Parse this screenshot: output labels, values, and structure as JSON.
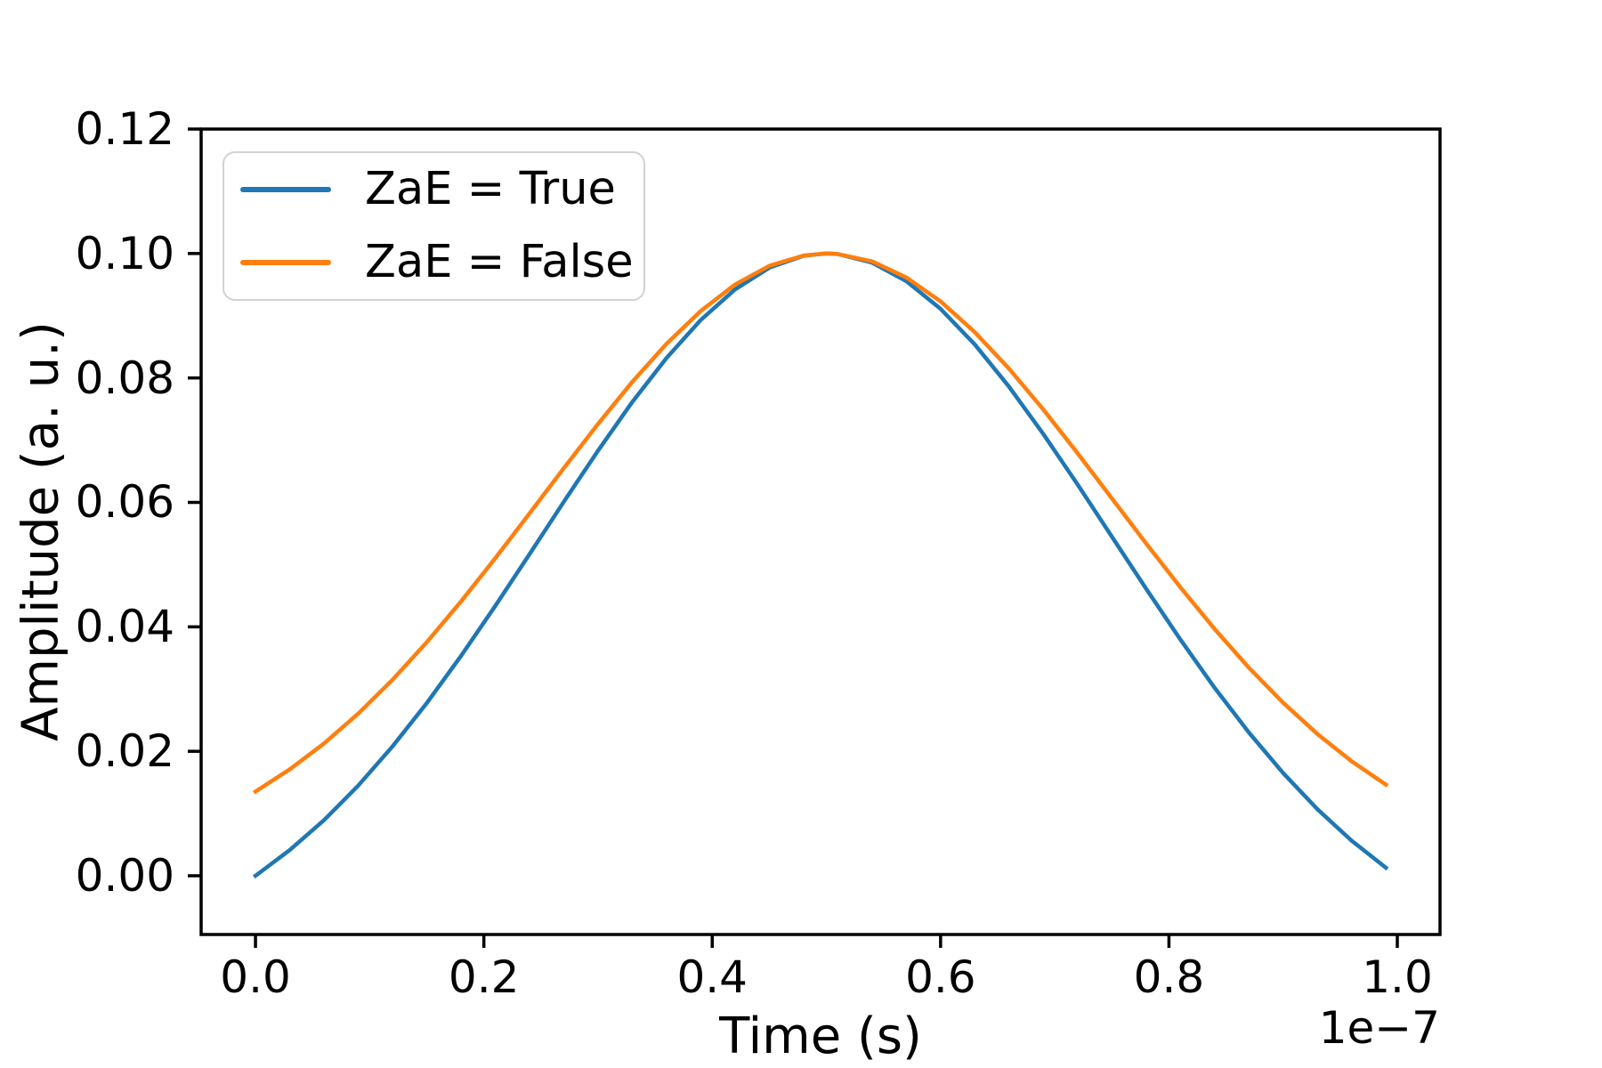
{
  "chart_data": {
    "type": "line",
    "title": "",
    "xlabel": "Time (s)",
    "ylabel": "Amplitude (a. u.)",
    "x_offset_text": "1e−7",
    "x_units_note": "x values in units of 1e-7 seconds",
    "grid": false,
    "xlim": [
      -0.0476,
      1.0374
    ],
    "ylim": [
      -0.00944,
      0.12
    ],
    "xticks": [
      {
        "v": 0.0,
        "label": "0.0"
      },
      {
        "v": 0.2,
        "label": "0.2"
      },
      {
        "v": 0.4,
        "label": "0.4"
      },
      {
        "v": 0.6,
        "label": "0.6"
      },
      {
        "v": 0.8,
        "label": "0.8"
      },
      {
        "v": 1.0,
        "label": "1.0"
      }
    ],
    "yticks": [
      {
        "v": 0.0,
        "label": "0.00"
      },
      {
        "v": 0.02,
        "label": "0.02"
      },
      {
        "v": 0.04,
        "label": "0.04"
      },
      {
        "v": 0.06,
        "label": "0.06"
      },
      {
        "v": 0.08,
        "label": "0.08"
      },
      {
        "v": 0.1,
        "label": "0.10"
      },
      {
        "v": 0.12,
        "label": "0.12"
      }
    ],
    "x": [
      0,
      0.03,
      0.06,
      0.09,
      0.12,
      0.15,
      0.18,
      0.21,
      0.24,
      0.27,
      0.3,
      0.33,
      0.36,
      0.39,
      0.42,
      0.45,
      0.48,
      0.5,
      0.51,
      0.54,
      0.57,
      0.6,
      0.63,
      0.66,
      0.69,
      0.72,
      0.75,
      0.78,
      0.81,
      0.84,
      0.87,
      0.9,
      0.93,
      0.96,
      0.99
    ],
    "series": [
      {
        "name": "ZaE = True",
        "color": "#1f77b4",
        "values": [
          0.0,
          0.00413,
          0.00893,
          0.01449,
          0.02078,
          0.02775,
          0.03533,
          0.04336,
          0.05169,
          0.0601,
          0.06832,
          0.07613,
          0.08322,
          0.08932,
          0.09423,
          0.09771,
          0.09963,
          0.1,
          0.09991,
          0.09853,
          0.09555,
          0.09111,
          0.08537,
          0.07858,
          0.07099,
          0.06287,
          0.05449,
          0.04612,
          0.03796,
          0.03021,
          0.02303,
          0.0165,
          0.0107,
          0.00563,
          0.00128
        ]
      },
      {
        "name": "ZaE = False",
        "color": "#ff7f0e",
        "values": [
          0.01353,
          0.0171,
          0.02125,
          0.02606,
          0.0315,
          0.03753,
          0.04408,
          0.05103,
          0.05823,
          0.0655,
          0.07261,
          0.07936,
          0.08549,
          0.09077,
          0.09501,
          0.09802,
          0.09968,
          0.1,
          0.09992,
          0.09873,
          0.09616,
          0.09231,
          0.08735,
          0.08148,
          0.07492,
          0.0679,
          0.06065,
          0.05341,
          0.04636,
          0.03966,
          0.03344,
          0.0278,
          0.02278,
          0.0184,
          0.01464
        ]
      }
    ],
    "legend": {
      "position": "upper left",
      "entries": [
        {
          "label": "ZaE = True",
          "color": "#1f77b4"
        },
        {
          "label": "ZaE = False",
          "color": "#ff7f0e"
        }
      ]
    },
    "axis_color": "#000000",
    "background": "#ffffff"
  }
}
